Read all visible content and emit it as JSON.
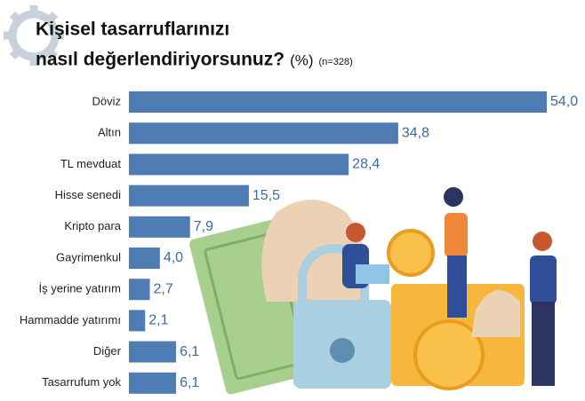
{
  "chart_data": {
    "type": "bar",
    "orientation": "horizontal",
    "title": [
      "Kişisel tasarruflarınızı",
      "nasıl değerlendiriyorsunuz?"
    ],
    "unit": "(%)",
    "note": "(n=328)",
    "categories": [
      "Döviz",
      "Altın",
      "TL mevduat",
      "Hisse senedi",
      "Kripto para",
      "Gayrimenkul",
      "İş yerine yatırım",
      "Hammadde yatırımı",
      "Diğer",
      "Tasarrufum yok"
    ],
    "values": [
      54.0,
      34.8,
      28.4,
      15.5,
      7.9,
      4.0,
      2.7,
      2.1,
      6.1,
      6.1
    ],
    "value_labels": [
      "54,0",
      "34,8",
      "28,4",
      "15,5",
      "7,9",
      "4,0",
      "2,7",
      "2,1",
      "6,1",
      "6,1"
    ],
    "color": "#4f7db3"
  }
}
